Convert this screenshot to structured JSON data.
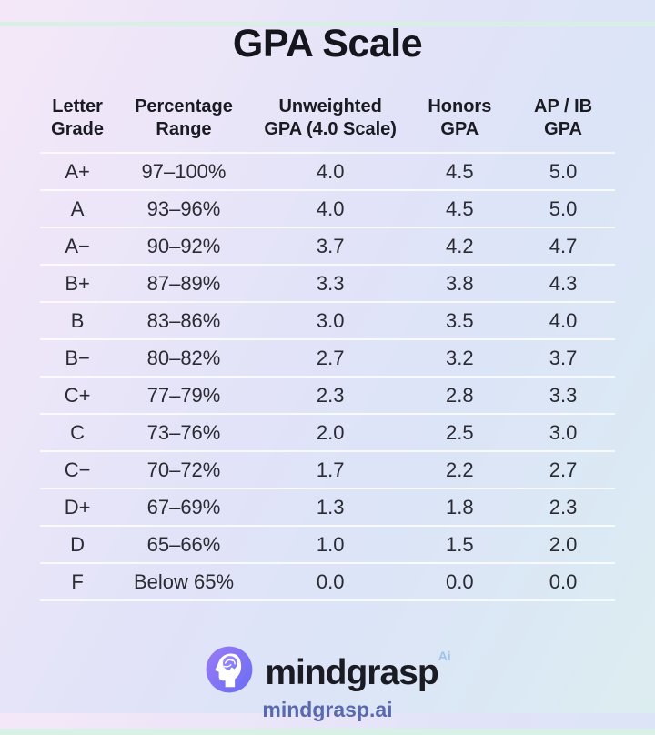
{
  "title": "GPA Scale",
  "table": {
    "headers": [
      {
        "line1": "Letter",
        "line2": "Grade"
      },
      {
        "line1": "Percentage",
        "line2": "Range"
      },
      {
        "line1": "Unweighted",
        "line2": "GPA (4.0 Scale)"
      },
      {
        "line1": "Honors",
        "line2": "GPA"
      },
      {
        "line1": "AP / IB",
        "line2": "GPA"
      }
    ],
    "rows": [
      [
        "A+",
        "97–100%",
        "4.0",
        "4.5",
        "5.0"
      ],
      [
        "A",
        "93–96%",
        "4.0",
        "4.5",
        "5.0"
      ],
      [
        "A−",
        "90–92%",
        "3.7",
        "4.2",
        "4.7"
      ],
      [
        "B+",
        "87–89%",
        "3.3",
        "3.8",
        "4.3"
      ],
      [
        "B",
        "83–86%",
        "3.0",
        "3.5",
        "4.0"
      ],
      [
        "B−",
        "80–82%",
        "2.7",
        "3.2",
        "3.7"
      ],
      [
        "C+",
        "77–79%",
        "2.3",
        "2.8",
        "3.3"
      ],
      [
        "C",
        "73–76%",
        "2.0",
        "2.5",
        "3.0"
      ],
      [
        "C−",
        "70–72%",
        "1.7",
        "2.2",
        "2.7"
      ],
      [
        "D+",
        "67–69%",
        "1.3",
        "1.8",
        "2.3"
      ],
      [
        "D",
        "65–66%",
        "1.0",
        "1.5",
        "2.0"
      ],
      [
        "F",
        "Below 65%",
        "0.0",
        "0.0",
        "0.0"
      ]
    ]
  },
  "footer": {
    "brand": "mindgrasp",
    "brand_superscript": "Ai",
    "url": "mindgrasp.ai"
  },
  "colors": {
    "title_text": "#15151d",
    "body_text": "#2b2b33",
    "divider": "#ffffff",
    "logo_gradient_start": "#9a7af6",
    "logo_gradient_end": "#6a6ef4",
    "brand_superscript": "#9cc3ea",
    "url_text": "#5a69ad",
    "edge_strip": "#d8efe4",
    "background_top_left": "#f4e8f8",
    "background_bottom_right": "#dcedf0"
  },
  "chart_data": {
    "type": "table",
    "title": "GPA Scale",
    "columns": [
      "Letter Grade",
      "Percentage Range",
      "Unweighted GPA (4.0 Scale)",
      "Honors GPA",
      "AP / IB GPA"
    ],
    "rows": [
      [
        "A+",
        "97–100%",
        4.0,
        4.5,
        5.0
      ],
      [
        "A",
        "93–96%",
        4.0,
        4.5,
        5.0
      ],
      [
        "A−",
        "90–92%",
        3.7,
        4.2,
        4.7
      ],
      [
        "B+",
        "87–89%",
        3.3,
        3.8,
        4.3
      ],
      [
        "B",
        "83–86%",
        3.0,
        3.5,
        4.0
      ],
      [
        "B−",
        "80–82%",
        2.7,
        3.2,
        3.7
      ],
      [
        "C+",
        "77–79%",
        2.3,
        2.8,
        3.3
      ],
      [
        "C",
        "73–76%",
        2.0,
        2.5,
        3.0
      ],
      [
        "C−",
        "70–72%",
        1.7,
        2.2,
        2.7
      ],
      [
        "D+",
        "67–69%",
        1.3,
        1.8,
        2.3
      ],
      [
        "D",
        "65–66%",
        1.0,
        1.5,
        2.0
      ],
      [
        "F",
        "Below 65%",
        0.0,
        0.0,
        0.0
      ]
    ]
  }
}
